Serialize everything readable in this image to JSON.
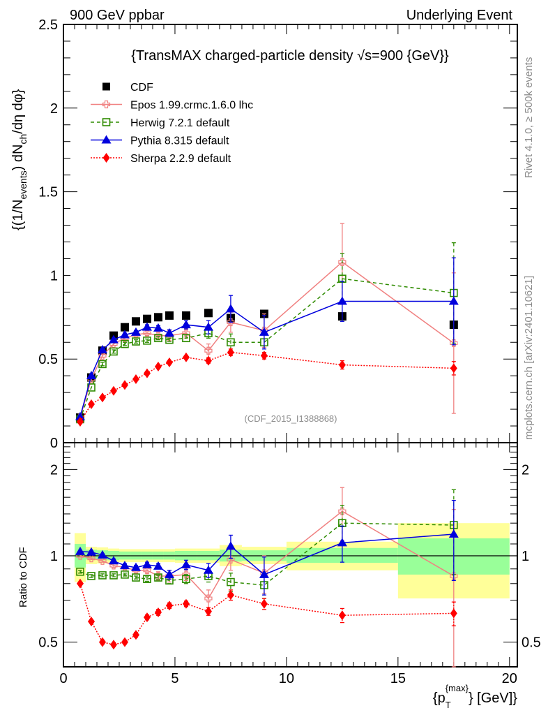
{
  "header": {
    "left": "900 GeV ppbar",
    "right": "Underlying Event"
  },
  "side_labels": {
    "rivet": "Rivet 4.1.0, ≥ 500k events",
    "mcplots": "mcplots.cern.ch [arXiv:2401.10621]"
  },
  "chart_data": [
    {
      "type": "scatter",
      "panel": "main",
      "title": "{TransMAX charged-particle density √s=900 {GeV}}",
      "analysis_tag": "(CDF_2015_I1388868)",
      "ylabel": "{(1/N_events) dN_ch/dη dφ}",
      "ylabel_parts": {
        "pre": "{(1/N",
        "sub1": "events",
        "mid": ") dN",
        "sub2": "ch",
        "post": "/dη  dφ}"
      },
      "xlabel": "",
      "xlim": [
        0,
        20.35
      ],
      "ylim": [
        0,
        2.5
      ],
      "yticks": [
        0,
        0.5,
        1,
        1.5,
        2,
        2.5
      ],
      "ytick_labels": [
        "0",
        "0.5",
        "1",
        "1.5",
        "2",
        "2.5"
      ],
      "legend": "top-left",
      "x": [
        0.75,
        1.25,
        1.75,
        2.25,
        2.75,
        3.25,
        3.75,
        4.25,
        4.75,
        5.5,
        6.5,
        7.5,
        9.0,
        12.5,
        17.5
      ],
      "series": [
        {
          "name": "CDF",
          "color": "#000000",
          "marker": "square",
          "line": "none",
          "values": [
            0.15,
            0.39,
            0.55,
            0.64,
            0.69,
            0.725,
            0.74,
            0.75,
            0.76,
            0.76,
            0.775,
            0.745,
            0.77,
            0.755,
            0.705
          ],
          "err": [
            0.01,
            0.01,
            0.01,
            0.01,
            0.01,
            0.01,
            0.01,
            0.01,
            0.01,
            0.01,
            0.01,
            0.02,
            0.02,
            0.02,
            0.02
          ]
        },
        {
          "name": "Epos 1.99.crmc.1.6.0 lhc",
          "color": "#f08080",
          "marker": "open-cross",
          "line": "solid",
          "values": [
            0.15,
            0.38,
            0.52,
            0.59,
            0.625,
            0.645,
            0.655,
            0.64,
            0.64,
            0.655,
            0.55,
            0.72,
            0.67,
            1.08,
            0.595
          ],
          "err": [
            0.01,
            0.01,
            0.01,
            0.01,
            0.01,
            0.015,
            0.015,
            0.02,
            0.03,
            0.03,
            0.04,
            0.06,
            0.1,
            0.23,
            0.42
          ]
        },
        {
          "name": "Herwig 7.2.1 default",
          "color": "#2e8b00",
          "marker": "open-square",
          "line": "dashed",
          "values": [
            0.14,
            0.33,
            0.47,
            0.545,
            0.59,
            0.605,
            0.61,
            0.625,
            0.615,
            0.625,
            0.655,
            0.6,
            0.6,
            0.98,
            0.895
          ],
          "err": [
            0.005,
            0.005,
            0.01,
            0.01,
            0.01,
            0.01,
            0.01,
            0.01,
            0.01,
            0.02,
            0.03,
            0.05,
            0.06,
            0.15,
            0.3
          ]
        },
        {
          "name": "Pythia 8.315 default",
          "color": "#0000dd",
          "marker": "triangle",
          "line": "solid",
          "values": [
            0.155,
            0.4,
            0.555,
            0.615,
            0.645,
            0.66,
            0.69,
            0.685,
            0.655,
            0.705,
            0.69,
            0.8,
            0.66,
            0.845,
            0.845
          ],
          "err": [
            0.005,
            0.005,
            0.01,
            0.01,
            0.01,
            0.01,
            0.015,
            0.015,
            0.02,
            0.025,
            0.04,
            0.08,
            0.1,
            0.12,
            0.26
          ]
        },
        {
          "name": "Sherpa 2.2.9 default",
          "color": "#ff0000",
          "marker": "diamond",
          "line": "dotted",
          "values": [
            0.125,
            0.23,
            0.27,
            0.31,
            0.345,
            0.38,
            0.415,
            0.455,
            0.48,
            0.51,
            0.49,
            0.54,
            0.52,
            0.465,
            0.445
          ],
          "err": [
            0.003,
            0.005,
            0.005,
            0.005,
            0.005,
            0.008,
            0.008,
            0.01,
            0.01,
            0.01,
            0.015,
            0.02,
            0.02,
            0.025,
            0.04
          ]
        }
      ]
    },
    {
      "type": "scatter",
      "panel": "ratio",
      "ylabel": "Ratio to CDF",
      "xlabel": "{p_T^{max}} [GeV]}",
      "xlabel_parts": {
        "pre": "{p",
        "sub": "T",
        "sup": "{max}",
        "post": "} [GeV]}"
      },
      "xlim": [
        0,
        20.35
      ],
      "ylim": [
        0.41,
        2.48
      ],
      "yscale": "log",
      "yticks": [
        0.5,
        1,
        2
      ],
      "ytick_labels": [
        "0.5",
        "1",
        "2"
      ],
      "xticks": [
        0,
        5,
        10,
        15,
        20
      ],
      "xtick_labels": [
        "0",
        "5",
        "10",
        "15",
        "20"
      ],
      "reference_line": 1,
      "bands": {
        "edges": [
          0.5,
          1.0,
          1.5,
          2.0,
          2.5,
          3.0,
          3.5,
          4.0,
          4.5,
          5.0,
          6.0,
          7.0,
          8.0,
          10.0,
          15.0,
          20.0
        ],
        "yellow_hi": [
          1.2,
          1.075,
          1.07,
          1.06,
          1.055,
          1.055,
          1.055,
          1.055,
          1.055,
          1.06,
          1.06,
          1.09,
          1.075,
          1.12,
          1.3
        ],
        "yellow_lo": [
          0.81,
          0.935,
          0.94,
          0.945,
          0.95,
          0.95,
          0.95,
          0.95,
          0.95,
          0.945,
          0.945,
          0.92,
          0.935,
          0.89,
          0.71
        ],
        "green_hi": [
          1.1,
          1.05,
          1.045,
          1.04,
          1.035,
          1.035,
          1.035,
          1.035,
          1.035,
          1.04,
          1.04,
          1.05,
          1.045,
          1.065,
          1.15
        ],
        "green_lo": [
          0.91,
          0.97,
          0.965,
          0.965,
          0.97,
          0.97,
          0.97,
          0.97,
          0.97,
          0.965,
          0.965,
          0.955,
          0.96,
          0.945,
          0.86
        ],
        "yellow_color": "#ffff99",
        "green_color": "#99ff99"
      },
      "x": [
        0.75,
        1.25,
        1.75,
        2.25,
        2.75,
        3.25,
        3.75,
        4.25,
        4.75,
        5.5,
        6.5,
        7.5,
        9.0,
        12.5,
        17.5
      ],
      "series": [
        {
          "name": "Epos 1.99.crmc.1.6.0 lhc",
          "color": "#f08080",
          "marker": "open-cross",
          "line": "solid",
          "values": [
            1.0,
            0.98,
            0.96,
            0.925,
            0.91,
            0.89,
            0.89,
            0.85,
            0.85,
            0.86,
            0.71,
            0.97,
            0.87,
            1.43,
            0.85
          ],
          "err": [
            0.01,
            0.01,
            0.01,
            0.015,
            0.015,
            0.02,
            0.02,
            0.03,
            0.04,
            0.04,
            0.05,
            0.08,
            0.13,
            0.3,
            0.6
          ]
        },
        {
          "name": "Herwig 7.2.1 default",
          "color": "#2e8b00",
          "marker": "open-square",
          "line": "dashed",
          "values": [
            0.88,
            0.85,
            0.855,
            0.855,
            0.86,
            0.84,
            0.83,
            0.84,
            0.82,
            0.83,
            0.85,
            0.81,
            0.79,
            1.3,
            1.28
          ],
          "err": [
            0.01,
            0.01,
            0.01,
            0.01,
            0.01,
            0.01,
            0.015,
            0.015,
            0.02,
            0.03,
            0.04,
            0.06,
            0.08,
            0.2,
            0.42
          ]
        },
        {
          "name": "Pythia 8.315 default",
          "color": "#0000dd",
          "marker": "triangle",
          "line": "solid",
          "values": [
            1.035,
            1.03,
            1.006,
            0.96,
            0.924,
            0.91,
            0.93,
            0.92,
            0.86,
            0.93,
            0.89,
            1.08,
            0.86,
            1.11,
            1.19
          ],
          "err": [
            0.01,
            0.01,
            0.01,
            0.015,
            0.015,
            0.015,
            0.02,
            0.02,
            0.03,
            0.035,
            0.05,
            0.1,
            0.13,
            0.16,
            0.37
          ]
        },
        {
          "name": "Sherpa 2.2.9 default",
          "color": "#ff0000",
          "marker": "diamond",
          "line": "dotted",
          "values": [
            0.8,
            0.59,
            0.5,
            0.49,
            0.5,
            0.53,
            0.61,
            0.635,
            0.67,
            0.68,
            0.64,
            0.73,
            0.68,
            0.62,
            0.63
          ],
          "err": [
            0.005,
            0.008,
            0.008,
            0.008,
            0.008,
            0.01,
            0.012,
            0.015,
            0.015,
            0.015,
            0.02,
            0.03,
            0.03,
            0.035,
            0.06
          ]
        }
      ]
    }
  ]
}
